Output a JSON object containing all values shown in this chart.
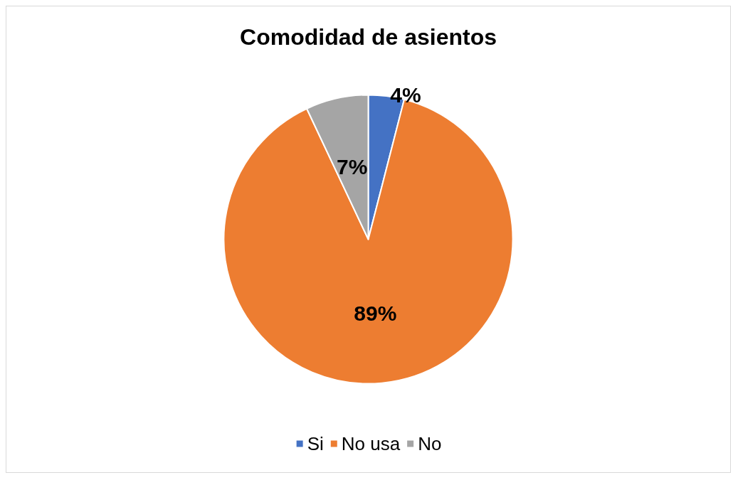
{
  "chart_data": {
    "type": "pie",
    "title": "Comodidad de asientos",
    "categories": [
      "Si",
      "No usa",
      "No"
    ],
    "values": [
      4,
      89,
      7
    ],
    "colors": [
      "#4472c4",
      "#ed7d31",
      "#a5a5a5"
    ],
    "value_labels": [
      "4%",
      "89%",
      "7%"
    ],
    "legend": "bottom"
  }
}
